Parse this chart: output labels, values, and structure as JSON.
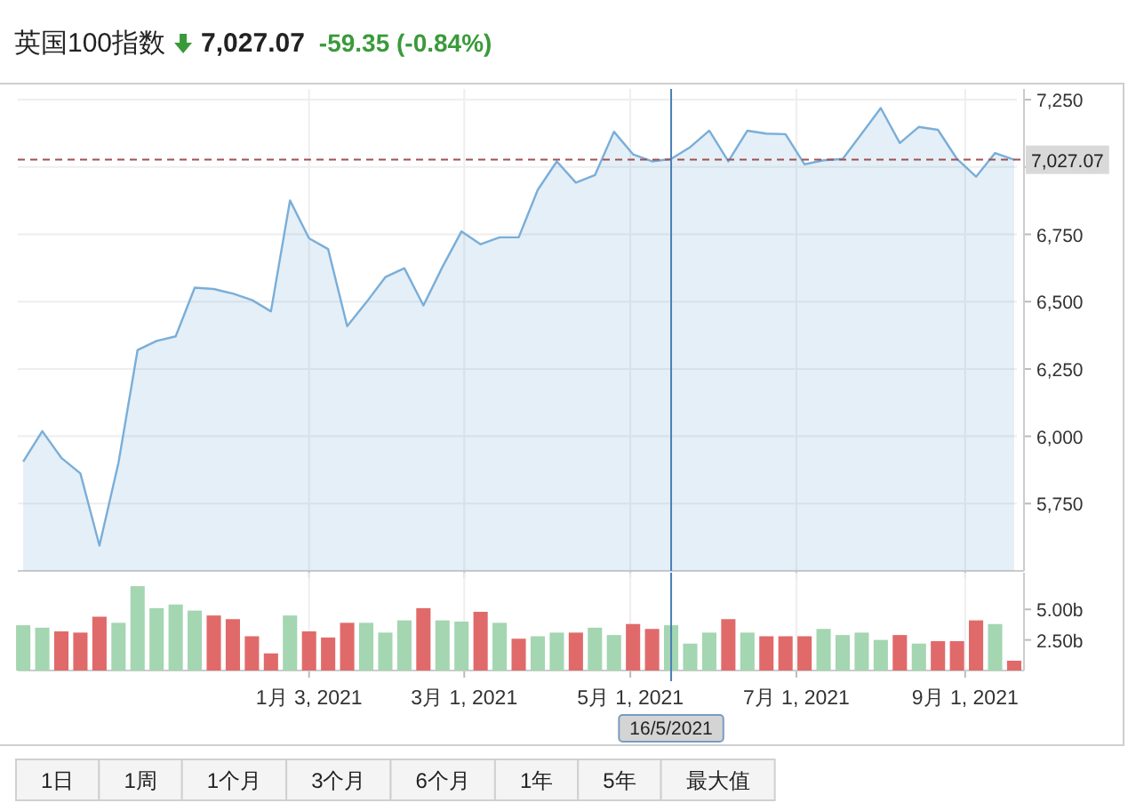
{
  "chart_data": [
    {
      "type": "area",
      "title": "英国100指数",
      "subtitle": "7,027.07",
      "annotations": [
        "-59.35 (-0.84%)"
      ],
      "x": [
        "2020-09-20",
        "2020-09-27",
        "2020-10-04",
        "2020-10-11",
        "2020-10-18",
        "2020-10-25",
        "2020-11-01",
        "2020-11-08",
        "2020-11-15",
        "2020-11-22",
        "2020-11-29",
        "2020-12-06",
        "2020-12-13",
        "2020-12-20",
        "2020-12-27",
        "2021-01-03",
        "2021-01-10",
        "2021-01-17",
        "2021-01-24",
        "2021-01-31",
        "2021-02-07",
        "2021-02-14",
        "2021-02-21",
        "2021-02-28",
        "2021-03-07",
        "2021-03-14",
        "2021-03-21",
        "2021-03-28",
        "2021-04-04",
        "2021-04-11",
        "2021-04-18",
        "2021-04-25",
        "2021-05-02",
        "2021-05-09",
        "2021-05-16",
        "2021-05-23",
        "2021-05-30",
        "2021-06-06",
        "2021-06-13",
        "2021-06-20",
        "2021-06-27",
        "2021-07-04",
        "2021-07-11",
        "2021-07-18",
        "2021-07-25",
        "2021-08-01",
        "2021-08-08",
        "2021-08-15",
        "2021-08-22",
        "2021-08-29",
        "2021-09-05",
        "2021-09-12",
        "2021-09-19"
      ],
      "series": [
        {
          "color": "#7aaed8",
          "values": [
            5906,
            6019,
            5920,
            5862,
            5594,
            5902,
            6320,
            6354,
            6371,
            6552,
            6547,
            6530,
            6506,
            6464,
            6876,
            6735,
            6695,
            6409,
            6497,
            6591,
            6624,
            6486,
            6629,
            6761,
            6713,
            6739,
            6739,
            6915,
            7021,
            6942,
            6970,
            7131,
            7047,
            7021,
            7030,
            7074,
            7135,
            7021,
            7135,
            7124,
            7122,
            7010,
            7025,
            7030,
            7124,
            7219,
            7089,
            7149,
            7138,
            7030,
            6964,
            7052,
            7027.07
          ]
        }
      ],
      "xlim": [
        "2020-09-18",
        "2021-09-20"
      ],
      "ylim": [
        5500,
        7290
      ],
      "xticks": [
        {
          "value": "2021-01-03",
          "label": null
        },
        {
          "value": "2021-03-01",
          "label": null
        },
        {
          "value": "2021-05-01",
          "label": null
        },
        {
          "value": "2021-07-01",
          "label": null
        },
        {
          "value": "2021-09-01",
          "label": null
        }
      ],
      "yticks": [
        {
          "value": 5750,
          "label": "5,750"
        },
        {
          "value": 6000,
          "label": "6,000"
        },
        {
          "value": 6250,
          "label": "6,250"
        },
        {
          "value": 6500,
          "label": "6,500"
        },
        {
          "value": 6750,
          "label": "6,750"
        },
        {
          "value": 7000,
          "label": null
        },
        {
          "value": 7250,
          "label": "7,250"
        }
      ],
      "grid": true,
      "tick_labels": "y",
      "ref_lines": [
        {
          "axis": "y",
          "value": 7027.07,
          "label": "7,027.07",
          "color": "#a05050",
          "line_style": "dashed"
        },
        {
          "axis": "x",
          "value": "2021-05-16",
          "label": null,
          "color": "#4a7fb5",
          "line_style": "solid"
        }
      ]
    },
    {
      "type": "bar",
      "x": [
        "2020-09-20",
        "2020-09-27",
        "2020-10-04",
        "2020-10-11",
        "2020-10-18",
        "2020-10-25",
        "2020-11-01",
        "2020-11-08",
        "2020-11-15",
        "2020-11-22",
        "2020-11-29",
        "2020-12-06",
        "2020-12-13",
        "2020-12-20",
        "2020-12-27",
        "2021-01-03",
        "2021-01-10",
        "2021-01-17",
        "2021-01-24",
        "2021-01-31",
        "2021-02-07",
        "2021-02-14",
        "2021-02-21",
        "2021-02-28",
        "2021-03-07",
        "2021-03-14",
        "2021-03-21",
        "2021-03-28",
        "2021-04-04",
        "2021-04-11",
        "2021-04-18",
        "2021-04-25",
        "2021-05-02",
        "2021-05-09",
        "2021-05-16",
        "2021-05-23",
        "2021-05-30",
        "2021-06-06",
        "2021-06-13",
        "2021-06-20",
        "2021-06-27",
        "2021-07-04",
        "2021-07-11",
        "2021-07-18",
        "2021-07-25",
        "2021-08-01",
        "2021-08-08",
        "2021-08-15",
        "2021-08-22",
        "2021-08-29",
        "2021-09-05",
        "2021-09-12",
        "2021-09-19"
      ],
      "values": [
        3.7,
        3.5,
        3.2,
        3.1,
        4.4,
        3.9,
        6.9,
        5.1,
        5.4,
        4.9,
        4.5,
        4.2,
        2.8,
        1.4,
        4.5,
        3.2,
        2.7,
        3.9,
        3.9,
        3.1,
        4.1,
        5.1,
        4.1,
        4.0,
        4.8,
        3.9,
        2.6,
        2.8,
        3.1,
        3.1,
        3.5,
        2.9,
        3.8,
        3.4,
        3.7,
        2.2,
        3.1,
        4.2,
        3.1,
        2.8,
        2.8,
        2.8,
        3.4,
        2.9,
        3.1,
        2.5,
        2.9,
        2.2,
        2.4,
        2.4,
        4.1,
        3.8,
        0.8
      ],
      "colors": [
        "#a3d6b1",
        "#a3d6b1",
        "#e06a6a",
        "#e06a6a",
        "#e06a6a",
        "#a3d6b1",
        "#a3d6b1",
        "#a3d6b1",
        "#a3d6b1",
        "#a3d6b1",
        "#e06a6a",
        "#e06a6a",
        "#e06a6a",
        "#e06a6a",
        "#a3d6b1",
        "#e06a6a",
        "#e06a6a",
        "#e06a6a",
        "#a3d6b1",
        "#a3d6b1",
        "#a3d6b1",
        "#e06a6a",
        "#a3d6b1",
        "#a3d6b1",
        "#e06a6a",
        "#a3d6b1",
        "#e06a6a",
        "#a3d6b1",
        "#a3d6b1",
        "#e06a6a",
        "#a3d6b1",
        "#a3d6b1",
        "#e06a6a",
        "#e06a6a",
        "#a3d6b1",
        "#a3d6b1",
        "#a3d6b1",
        "#e06a6a",
        "#a3d6b1",
        "#e06a6a",
        "#e06a6a",
        "#e06a6a",
        "#a3d6b1",
        "#a3d6b1",
        "#a3d6b1",
        "#a3d6b1",
        "#e06a6a",
        "#a3d6b1",
        "#e06a6a",
        "#e06a6a",
        "#e06a6a",
        "#a3d6b1",
        "#e06a6a"
      ],
      "xlim": [
        "2020-09-18",
        "2021-09-20"
      ],
      "ylim": [
        0,
        8
      ],
      "xticks": [
        {
          "value": "2021-01-03",
          "label": "1月 3, 2021"
        },
        {
          "value": "2021-03-01",
          "label": "3月 1, 2021"
        },
        {
          "value": "2021-05-01",
          "label": "5月 1, 2021"
        },
        {
          "value": "2021-07-01",
          "label": "7月 1, 2021"
        },
        {
          "value": "2021-09-01",
          "label": "9月 1, 2021"
        }
      ],
      "yticks": [
        {
          "value": 2.5,
          "label": "2.50b"
        },
        {
          "value": 5,
          "label": "5.00b"
        }
      ],
      "grid": "x",
      "ref_lines": [
        {
          "axis": "x",
          "value": "2021-05-16",
          "label": "16/5/2021",
          "color": "#4a7fb5",
          "line_style": "solid"
        }
      ]
    },
    {
      "type": "other",
      "annotations": [
        "1日",
        "1周",
        "1个月",
        "3个月",
        "6个月",
        "1年",
        "5年",
        "最大值"
      ]
    }
  ]
}
